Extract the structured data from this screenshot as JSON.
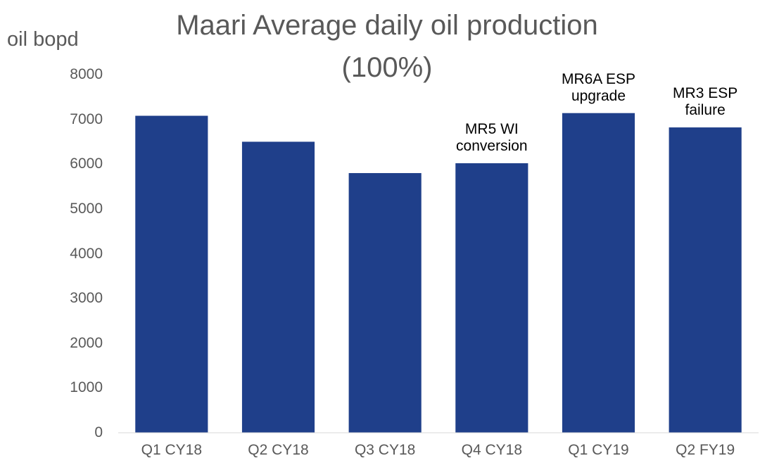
{
  "chart_data": {
    "type": "bar",
    "title": "Maari Average daily oil production\n(100%)",
    "y_label": "oil bopd",
    "categories": [
      "Q1 CY18",
      "Q2 CY18",
      "Q3 CY18",
      "Q4 CY18",
      "Q1 CY19",
      "Q2 FY19"
    ],
    "values": [
      7080,
      6500,
      5800,
      6020,
      7140,
      6820
    ],
    "annotations": [
      null,
      null,
      null,
      "MR5 WI\nconversion",
      "MR6A ESP\nupgrade",
      "MR3 ESP\nfailure"
    ],
    "color": "#1f3f8a",
    "ylim": [
      0,
      8000
    ],
    "yticks": [
      0,
      1000,
      2000,
      3000,
      4000,
      5000,
      6000,
      7000,
      8000
    ],
    "grid": false
  }
}
